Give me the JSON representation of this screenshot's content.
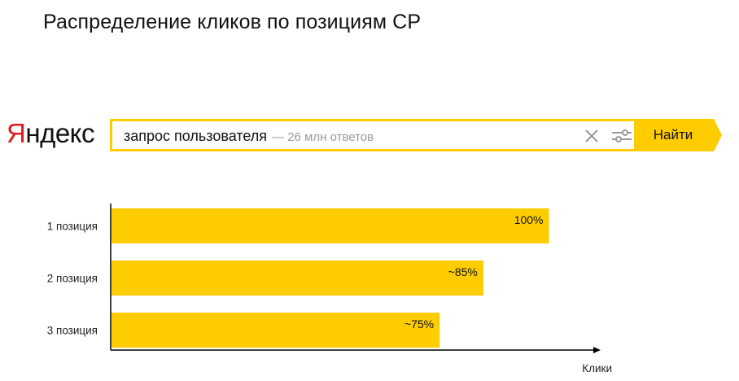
{
  "page": {
    "title": "Распределение кликов по позициям СР"
  },
  "logo": {
    "first_letter": "Я",
    "rest": "ндекс"
  },
  "search": {
    "query": "запрос пользователя",
    "hint": "— 26 млн ответов",
    "button_label": "Найти",
    "clear_icon": "close-icon",
    "settings_icon": "sliders-icon"
  },
  "colors": {
    "accent": "#ffcc00",
    "logo_red": "#e01b1b",
    "hint_gray": "#9a9a9a"
  },
  "chart_data": {
    "type": "bar",
    "orientation": "horizontal",
    "categories": [
      "1 позиция",
      "2 позиция",
      "3 позиция"
    ],
    "values": [
      100,
      85,
      75
    ],
    "data_labels": [
      "100%",
      "~85%",
      "~75%"
    ],
    "xlabel": "Клики",
    "ylabel": "",
    "xlim": [
      0,
      112
    ],
    "grid": false,
    "bar_color": "#ffcc00"
  }
}
